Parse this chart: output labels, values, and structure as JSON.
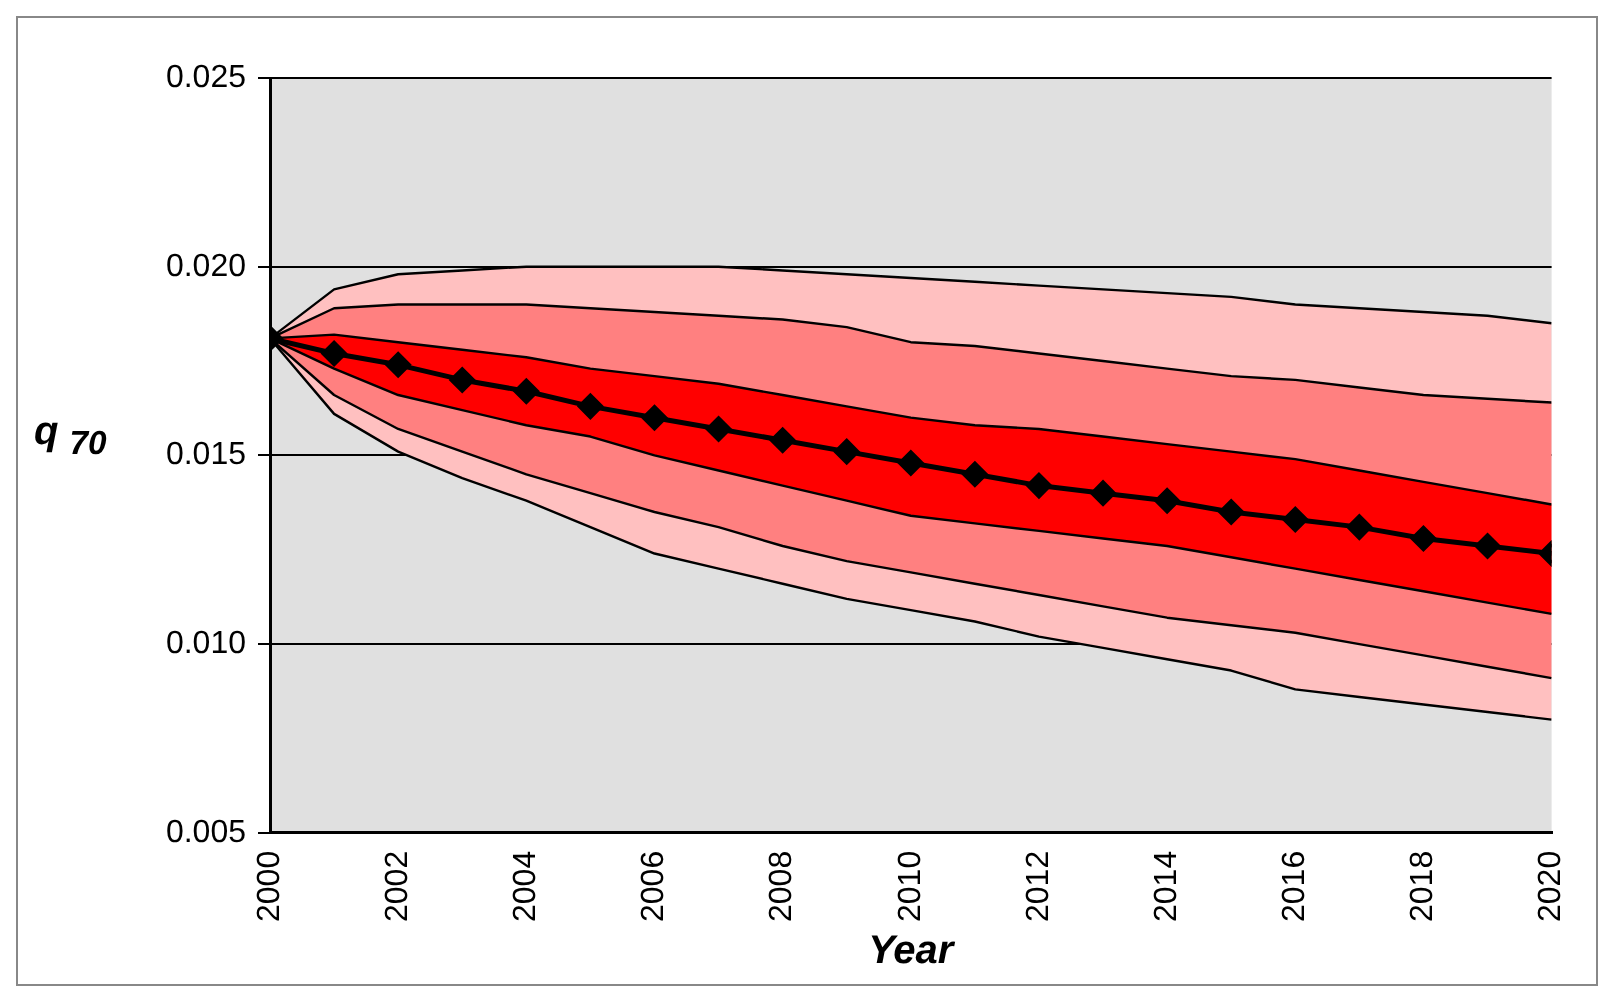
{
  "chart_data": {
    "type": "line",
    "xlabel": "Year",
    "ylabel": "q $_{70}$",
    "x": [
      2000,
      2001,
      2002,
      2003,
      2004,
      2005,
      2006,
      2007,
      2008,
      2009,
      2010,
      2011,
      2012,
      2013,
      2014,
      2015,
      2016,
      2017,
      2018,
      2019,
      2020
    ],
    "series": [
      {
        "type": "area",
        "color": "#ffc0c0",
        "values": [
          0.0181,
          0.0194,
          0.0198,
          0.0199,
          0.02,
          0.02,
          0.02,
          0.02,
          0.0199,
          0.0198,
          0.0197,
          0.0196,
          0.0195,
          0.0194,
          0.0193,
          0.0192,
          0.019,
          0.0189,
          0.0188,
          0.0187,
          0.0185
        ]
      },
      {
        "color": "#000000",
        "values": [
          0.0181,
          0.0161,
          0.0151,
          0.0144,
          0.0138,
          0.0131,
          0.0124,
          0.012,
          0.0116,
          0.0112,
          0.0109,
          0.0106,
          0.0102,
          0.0099,
          0.0096,
          0.0093,
          0.0088,
          0.0086,
          0.0084,
          0.0082,
          0.008
        ]
      },
      {
        "type": "area",
        "color": "#ff8080",
        "values": [
          0.0181,
          0.0189,
          0.019,
          0.019,
          0.019,
          0.0189,
          0.0188,
          0.0187,
          0.0186,
          0.0184,
          0.018,
          0.0179,
          0.0177,
          0.0175,
          0.0173,
          0.0171,
          0.017,
          0.0168,
          0.0166,
          0.0165,
          0.0164
        ]
      },
      {
        "color": "#000000",
        "values": [
          0.0181,
          0.0166,
          0.0157,
          0.0151,
          0.0145,
          0.014,
          0.0135,
          0.0131,
          0.0126,
          0.0122,
          0.0119,
          0.0116,
          0.0113,
          0.011,
          0.0107,
          0.0105,
          0.0103,
          0.01,
          0.0097,
          0.0094,
          0.0091
        ]
      },
      {
        "type": "area",
        "color": "#ff0000",
        "values": [
          0.0181,
          0.0182,
          0.018,
          0.0178,
          0.0176,
          0.0173,
          0.0171,
          0.0169,
          0.0166,
          0.0163,
          0.016,
          0.0158,
          0.0157,
          0.0155,
          0.0153,
          0.0151,
          0.0149,
          0.0146,
          0.0143,
          0.014,
          0.0137
        ]
      },
      {
        "color": "#000000",
        "values": [
          0.0181,
          0.0173,
          0.0166,
          0.0162,
          0.0158,
          0.0155,
          0.015,
          0.0146,
          0.0142,
          0.0138,
          0.0134,
          0.0132,
          0.013,
          0.0128,
          0.0126,
          0.0123,
          0.012,
          0.0117,
          0.0114,
          0.0111,
          0.0108
        ]
      },
      {
        "color": "#000000",
        "marker": "diamond",
        "values": [
          0.0181,
          0.0177,
          0.0174,
          0.017,
          0.0167,
          0.0163,
          0.016,
          0.0157,
          0.0154,
          0.0151,
          0.0148,
          0.0145,
          0.0142,
          0.014,
          0.0138,
          0.0135,
          0.0133,
          0.0131,
          0.0128,
          0.0126,
          0.0124
        ]
      }
    ],
    "xlim": [
      2000,
      2020
    ],
    "xticks": [
      2000,
      2002,
      2004,
      2006,
      2008,
      2010,
      2012,
      2014,
      2016,
      2018,
      2020
    ],
    "ylim": [
      0.005,
      0.025
    ],
    "yticks": [
      0.005,
      {
        "value": 0.01,
        "label": "0.010"
      },
      0.015,
      {
        "value": 0.02,
        "label": "0.020"
      },
      0.025
    ],
    "grid": "y",
    "line_style": "solid",
    "legend": false
  }
}
